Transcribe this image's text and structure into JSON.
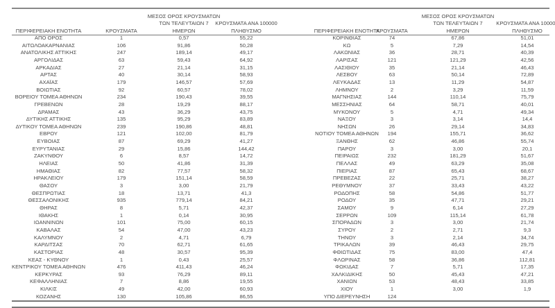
{
  "headers": {
    "region": "ΠΕΡΙΦΕΡΕΙΑΚΗ ΕΝΟΤΗΤΑ",
    "cases": "ΚΡΟΥΣΜΑΤΑ",
    "avg7": "ΜΕΣΟΣ ΟΡΟΣ ΚΡΟΥΣΜΑΤΩΝ ΤΩΝ ΤΕΛΕΥΤΑΙΩΝ 7 ΗΜΕΡΩΝ",
    "per100k": "ΚΡΟΥΣΜΑΤΑ ΑΝΑ 100000 ΠΛΗΘΥΣΜΟ"
  },
  "left_rows": [
    [
      "ΑΠΟ ΟΡΟΣ",
      "1",
      "0,57",
      "55,22"
    ],
    [
      "ΑΙΤΩΛΟΑΚΑΡΝΑΝΙΑΣ",
      "106",
      "91,86",
      "50,28"
    ],
    [
      "ΑΝΑΤΟΛΙΚΗΣ ΑΤΤΙΚΗΣ",
      "247",
      "189,14",
      "49,17"
    ],
    [
      "ΑΡΓΟΛΙΔΑΣ",
      "63",
      "59,43",
      "64,92"
    ],
    [
      "ΑΡΚΑΔΙΑΣ",
      "27",
      "21,14",
      "31,15"
    ],
    [
      "ΑΡΤΑΣ",
      "40",
      "30,14",
      "58,93"
    ],
    [
      "ΑΧΑΪΑΣ",
      "179",
      "146,57",
      "57,69"
    ],
    [
      "ΒΟΙΩΤΙΑΣ",
      "92",
      "60,57",
      "78,02"
    ],
    [
      "ΒΟΡΕΙΟΥ ΤΟΜΕΑ ΑΘΗΝΩΝ",
      "234",
      "190,43",
      "39,55"
    ],
    [
      "ΓΡΕΒΕΝΩΝ",
      "28",
      "19,29",
      "88,17"
    ],
    [
      "ΔΡΑΜΑΣ",
      "43",
      "36,29",
      "43,75"
    ],
    [
      "ΔΥΤΙΚΗΣ ΑΤΤΙΚΗΣ",
      "135",
      "95,29",
      "83,89"
    ],
    [
      "ΔΥΤΙΚΟΥ ΤΟΜΕΑ ΑΘΗΝΩΝ",
      "239",
      "190,86",
      "48,81"
    ],
    [
      "ΕΒΡΟΥ",
      "121",
      "102,00",
      "81,79"
    ],
    [
      "ΕΥΒΟΙΑΣ",
      "87",
      "69,29",
      "41,27"
    ],
    [
      "ΕΥΡΥΤΑΝΙΑΣ",
      "29",
      "15,86",
      "144,42"
    ],
    [
      "ΖΑΚΥΝΘΟΥ",
      "6",
      "8,57",
      "14,72"
    ],
    [
      "ΗΛΕΙΑΣ",
      "50",
      "41,86",
      "31,39"
    ],
    [
      "ΗΜΑΘΙΑΣ",
      "82",
      "77,57",
      "58,32"
    ],
    [
      "ΗΡΑΚΛΕΙΟΥ",
      "179",
      "151,14",
      "58,59"
    ],
    [
      "ΘΑΣΟΥ",
      "3",
      "3,00",
      "21,79"
    ],
    [
      "ΘΕΣΠΡΩΤΙΑΣ",
      "18",
      "13,71",
      "41,3"
    ],
    [
      "ΘΕΣΣΑΛΟΝΙΚΗΣ",
      "935",
      "779,14",
      "84,21"
    ],
    [
      "ΘΗΡΑΣ",
      "8",
      "5,71",
      "42,37"
    ],
    [
      "ΙΘΑΚΗΣ",
      "1",
      "0,14",
      "30,95"
    ],
    [
      "ΙΩΑΝΝΙΝΩΝ",
      "101",
      "75,00",
      "60,15"
    ],
    [
      "ΚΑΒΑΛΑΣ",
      "54",
      "47,00",
      "43,23"
    ],
    [
      "ΚΑΛΥΜΝΟΥ",
      "2",
      "4,71",
      "6,79"
    ],
    [
      "ΚΑΡΔΙΤΣΑΣ",
      "70",
      "62,71",
      "61,65"
    ],
    [
      "ΚΑΣΤΟΡΙΑΣ",
      "48",
      "30,57",
      "95,39"
    ],
    [
      "ΚΕΑΣ - ΚΥΘΝΟΥ",
      "1",
      "0,43",
      "25,57"
    ],
    [
      "ΚΕΝΤΡΙΚΟΥ ΤΟΜΕΑ ΑΘΗΝΩΝ",
      "476",
      "411,43",
      "46,24"
    ],
    [
      "ΚΕΡΚΥΡΑΣ",
      "93",
      "76,29",
      "89,11"
    ],
    [
      "ΚΕΦΑΛΛΗΝΙΑΣ",
      "7",
      "8,86",
      "19,55"
    ],
    [
      "ΚΙΛΚΙΣ",
      "49",
      "42,00",
      "60,93"
    ],
    [
      "ΚΟΖΑΝΗΣ",
      "130",
      "105,86",
      "86,55"
    ]
  ],
  "right_rows": [
    [
      "ΚΟΡΙΝΘΙΑΣ",
      "74",
      "67,86",
      "51,01"
    ],
    [
      "ΚΩ",
      "5",
      "7,29",
      "14,54"
    ],
    [
      "ΛΑΚΩΝΙΑΣ",
      "36",
      "28,71",
      "40,39"
    ],
    [
      "ΛΑΡΙΣΑΣ",
      "121",
      "121,29",
      "42,56"
    ],
    [
      "ΛΑΣΙΘΙΟΥ",
      "35",
      "21,14",
      "46,43"
    ],
    [
      "ΛΕΣΒΟΥ",
      "63",
      "50,14",
      "72,89"
    ],
    [
      "ΛΕΥΚΑΔΑΣ",
      "13",
      "11,29",
      "54,87"
    ],
    [
      "ΛΗΜΝΟΥ",
      "2",
      "3,29",
      "11,59"
    ],
    [
      "ΜΑΓΝΗΣΙΑΣ",
      "144",
      "110,14",
      "75,79"
    ],
    [
      "ΜΕΣΣΗΝΙΑΣ",
      "64",
      "58,71",
      "40,01"
    ],
    [
      "ΜΥΚΟΝΟΥ",
      "5",
      "4,71",
      "49,34"
    ],
    [
      "ΝΑΞΟΥ",
      "3",
      "3,14",
      "14,4"
    ],
    [
      "ΝΗΣΩΝ",
      "26",
      "29,14",
      "34,83"
    ],
    [
      "ΝΟΤΙΟΥ ΤΟΜΕΑ ΑΘΗΝΩΝ",
      "194",
      "155,71",
      "36,62"
    ],
    [
      "ΞΑΝΘΗΣ",
      "62",
      "46,86",
      "55,74"
    ],
    [
      "ΠΑΡΟΥ",
      "3",
      "3,00",
      "20,1"
    ],
    [
      "ΠΕΙΡΑΙΩΣ",
      "232",
      "181,29",
      "51,67"
    ],
    [
      "ΠΕΛΛΑΣ",
      "49",
      "63,29",
      "35,08"
    ],
    [
      "ΠΙΕΡΙΑΣ",
      "87",
      "65,43",
      "68,67"
    ],
    [
      "ΠΡΕΒΕΖΑΣ",
      "22",
      "25,71",
      "38,27"
    ],
    [
      "ΡΕΘΥΜΝΟΥ",
      "37",
      "33,43",
      "43,22"
    ],
    [
      "ΡΟΔΟΠΗΣ",
      "58",
      "54,86",
      "51,77"
    ],
    [
      "ΡΟΔΟΥ",
      "35",
      "47,71",
      "29,21"
    ],
    [
      "ΣΑΜΟΥ",
      "9",
      "6,14",
      "27,29"
    ],
    [
      "ΣΕΡΡΩΝ",
      "109",
      "115,14",
      "61,78"
    ],
    [
      "ΣΠΟΡΑΔΩΝ",
      "3",
      "3,00",
      "21,74"
    ],
    [
      "ΣΥΡΟΥ",
      "2",
      "2,71",
      "9,3"
    ],
    [
      "ΤΗΝΟΥ",
      "3",
      "2,14",
      "34,74"
    ],
    [
      "ΤΡΙΚΑΛΩΝ",
      "39",
      "46,43",
      "29,75"
    ],
    [
      "ΦΘΙΩΤΙΔΑΣ",
      "75",
      "83,00",
      "47,4"
    ],
    [
      "ΦΛΩΡΙΝΑΣ",
      "58",
      "36,86",
      "112,81"
    ],
    [
      "ΦΩΚΙΔΑΣ",
      "7",
      "5,71",
      "17,35"
    ],
    [
      "ΧΑΛΚΙΔΙΚΗΣ",
      "50",
      "45,43",
      "47,21"
    ],
    [
      "ΧΑΝΙΩΝ",
      "53",
      "48,43",
      "33,85"
    ],
    [
      "ΧΙΟΥ",
      "1",
      "3,00",
      "1,9"
    ],
    [
      "ΥΠΟ ΔΙΕΡΕΥΝΗΣΗ",
      "124",
      "",
      ""
    ]
  ]
}
